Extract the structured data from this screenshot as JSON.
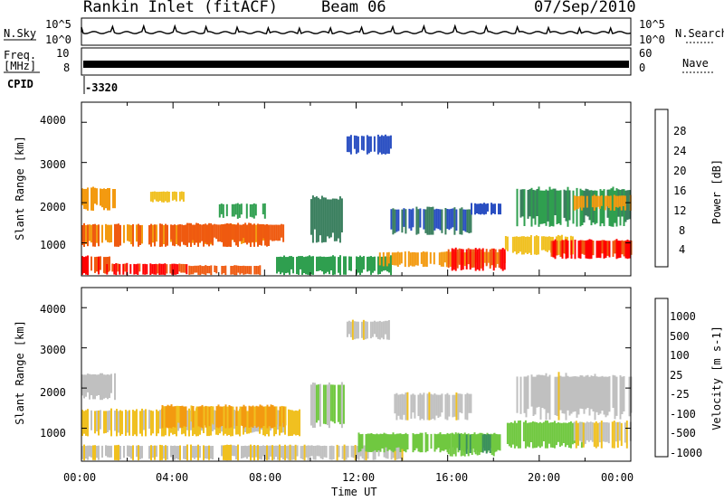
{
  "header": {
    "station": "Rankin Inlet (fitACF)",
    "beam": "Beam 06",
    "date": "07/Sep/2010"
  },
  "status_panels": {
    "nsky_label": "N.Sky",
    "nsky_ticks": [
      "10^5",
      "10^0"
    ],
    "nsearch_label": "N.Search",
    "nsearch_ticks": [
      "10^5",
      "10^0"
    ],
    "freq_label": "Freq.",
    "freq_unit": "[MHz]",
    "freq_ticks": [
      "10",
      "8"
    ],
    "nave_label": "Nave",
    "nave_ticks": [
      "60",
      "0"
    ],
    "cpid_label": "CPID",
    "cpid_value": "-3320"
  },
  "chart_data": [
    {
      "type": "heatmap",
      "name": "power",
      "ylabel": "Slant Range [km]",
      "yticks": [
        "4000",
        "3000",
        "2000",
        "1000"
      ],
      "ylim": [
        180,
        4500
      ],
      "xlim": [
        0,
        24
      ],
      "colorbar_label": "Power [dB]",
      "colorbar_ticks": [
        "28",
        "24",
        "20",
        "16",
        "12",
        "8",
        "4"
      ],
      "colorbar_colors": [
        "#0000ff",
        "#2a4fc2",
        "#3a7f5e",
        "#2f9f4f",
        "#f0c020",
        "#f39a10",
        "#ef5a10",
        "#ff0000"
      ],
      "regions": [
        {
          "t0": 0.0,
          "t1": 1.2,
          "r0": 200,
          "r1": 700,
          "v": 28
        },
        {
          "t0": 1.0,
          "t1": 4.6,
          "r0": 200,
          "r1": 500,
          "v": 28
        },
        {
          "t0": 4.6,
          "t1": 7.8,
          "r0": 200,
          "r1": 450,
          "v": 26
        },
        {
          "t0": 0.0,
          "t1": 8.2,
          "r0": 900,
          "r1": 1500,
          "v": 24
        },
        {
          "t0": 3.8,
          "t1": 8.8,
          "r0": 1000,
          "r1": 1500,
          "v": 26
        },
        {
          "t0": 0.0,
          "t1": 1.5,
          "r0": 1800,
          "r1": 2400,
          "v": 22
        },
        {
          "t0": 3.0,
          "t1": 4.5,
          "r0": 2000,
          "r1": 2300,
          "v": 18
        },
        {
          "t0": 8.5,
          "t1": 13.5,
          "r0": 200,
          "r1": 700,
          "v": 14
        },
        {
          "t0": 13.0,
          "t1": 18.5,
          "r0": 400,
          "r1": 800,
          "v": 22
        },
        {
          "t0": 16.0,
          "t1": 18.5,
          "r0": 300,
          "r1": 900,
          "v": 28
        },
        {
          "t0": 18.5,
          "t1": 21.5,
          "r0": 700,
          "r1": 1200,
          "v": 18
        },
        {
          "t0": 20.5,
          "t1": 24.0,
          "r0": 600,
          "r1": 1100,
          "v": 28
        },
        {
          "t0": 19.0,
          "t1": 24.0,
          "r0": 1400,
          "r1": 2400,
          "v": 12
        },
        {
          "t0": 21.5,
          "t1": 24.0,
          "r0": 1800,
          "r1": 2200,
          "v": 22
        },
        {
          "t0": 10.0,
          "t1": 11.5,
          "r0": 1000,
          "r1": 2200,
          "v": 10
        },
        {
          "t0": 11.5,
          "t1": 13.5,
          "r0": 3200,
          "r1": 3700,
          "v": 6
        },
        {
          "t0": 13.5,
          "t1": 17.0,
          "r0": 1200,
          "r1": 1900,
          "v": 8
        },
        {
          "t0": 17.0,
          "t1": 18.5,
          "r0": 1700,
          "r1": 2000,
          "v": 6
        },
        {
          "t0": 6.0,
          "t1": 8.0,
          "r0": 1600,
          "r1": 2000,
          "v": 14
        }
      ]
    },
    {
      "type": "heatmap",
      "name": "velocity",
      "ylabel": "Slant Range [km]",
      "yticks": [
        "4000",
        "3000",
        "2000",
        "1000"
      ],
      "ylim": [
        180,
        4500
      ],
      "xlim": [
        0,
        24
      ],
      "xticks": [
        "00:00",
        "04:00",
        "08:00",
        "12:00",
        "16:00",
        "20:00",
        "00:00"
      ],
      "xlabel": "Time UT",
      "colorbar_label": "Velocity [m s-1]",
      "colorbar_ticks": [
        "1000",
        "500",
        "100",
        "25",
        "-25",
        "-100",
        "-500",
        "-1000"
      ],
      "colorbar_colors": [
        "#ff0000",
        "#ef5a10",
        "#f39a10",
        "#f0c020",
        "#c0c0c0",
        "#70c840",
        "#3a8f5e",
        "#2a4fc2",
        "#0000ff"
      ],
      "regions": [
        {
          "t0": 0.0,
          "t1": 9.5,
          "r0": 800,
          "r1": 1500,
          "v": 150
        },
        {
          "t0": 0.0,
          "t1": 1.5,
          "r0": 1700,
          "r1": 2400,
          "v": 0
        },
        {
          "t0": 3.5,
          "t1": 9.0,
          "r0": 1000,
          "r1": 1600,
          "v": 400
        },
        {
          "t0": 0.0,
          "t1": 9.0,
          "r0": 200,
          "r1": 600,
          "v": 60
        },
        {
          "t0": 9.0,
          "t1": 14.0,
          "r0": 200,
          "r1": 600,
          "v": 40
        },
        {
          "t0": 12.0,
          "t1": 18.5,
          "r0": 400,
          "r1": 900,
          "v": -300
        },
        {
          "t0": 16.0,
          "t1": 18.0,
          "r0": 300,
          "r1": 900,
          "v": -400
        },
        {
          "t0": 18.5,
          "t1": 22.0,
          "r0": 500,
          "r1": 1200,
          "v": -300
        },
        {
          "t0": 19.0,
          "t1": 24.0,
          "r0": 1200,
          "r1": 2400,
          "v": 0
        },
        {
          "t0": 21.5,
          "t1": 24.0,
          "r0": 500,
          "r1": 1200,
          "v": 150
        },
        {
          "t0": 10.0,
          "t1": 11.5,
          "r0": 1000,
          "r1": 2200,
          "v": -150
        },
        {
          "t0": 11.5,
          "t1": 13.5,
          "r0": 3200,
          "r1": 3700,
          "v": 0
        },
        {
          "t0": 13.5,
          "t1": 17.0,
          "r0": 1200,
          "r1": 1900,
          "v": 0
        }
      ]
    }
  ]
}
